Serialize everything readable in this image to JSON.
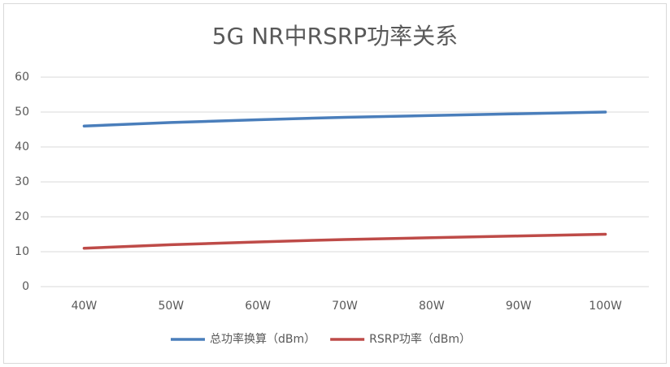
{
  "chart_data": {
    "type": "line",
    "title": "5G NR中RSRP功率关系",
    "categories": [
      "40W",
      "50W",
      "60W",
      "70W",
      "80W",
      "90W",
      "100W"
    ],
    "series": [
      {
        "name": "总功率换算（dBm）",
        "color": "#4a7ebb",
        "values": [
          46.0,
          47.0,
          47.8,
          48.5,
          49.0,
          49.5,
          50.0
        ]
      },
      {
        "name": "RSRP功率（dBm）",
        "color": "#be4b48",
        "values": [
          11.0,
          12.0,
          12.8,
          13.5,
          14.0,
          14.5,
          15.0
        ]
      }
    ],
    "ylim": [
      0,
      60
    ],
    "yticks": [
      0,
      10,
      20,
      30,
      40,
      50,
      60
    ],
    "grid": true,
    "legend": "bottom"
  }
}
